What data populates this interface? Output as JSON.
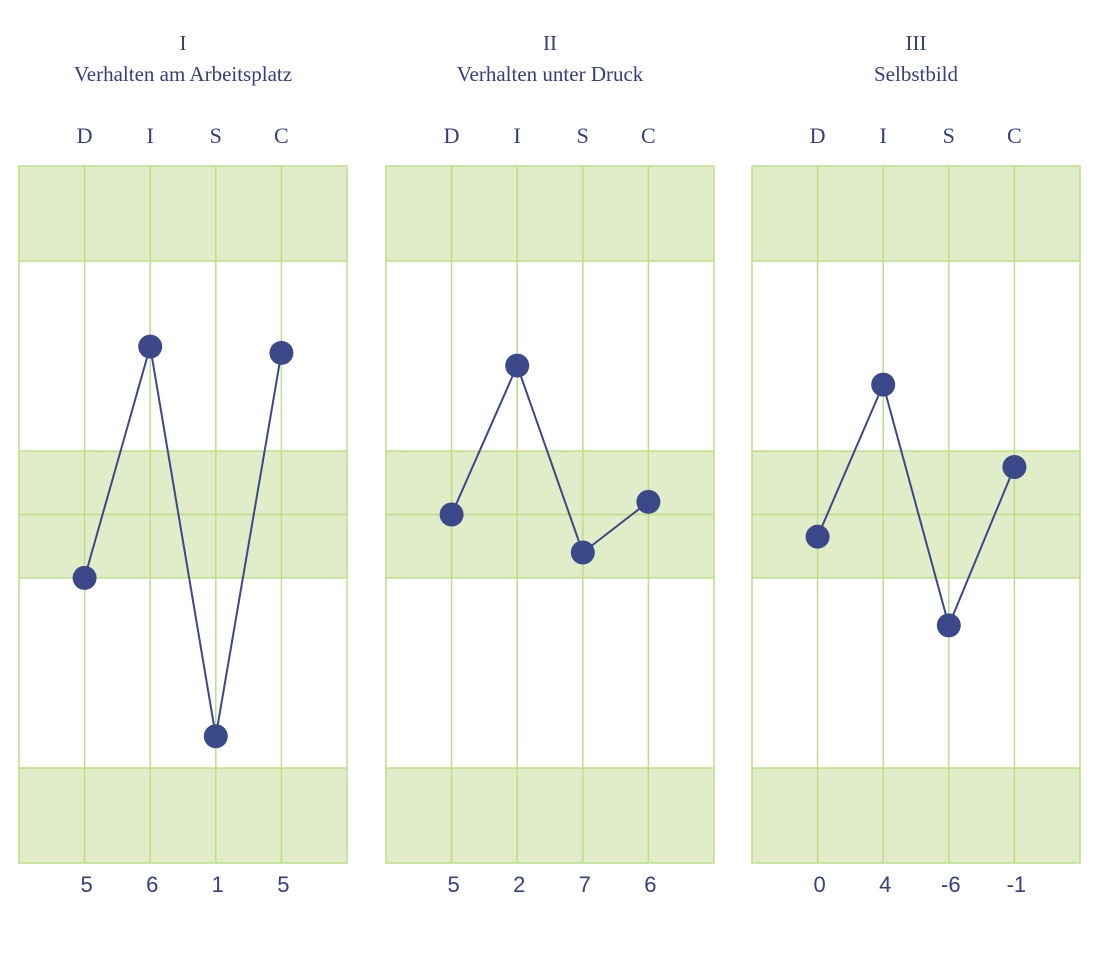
{
  "colors": {
    "band_fill": "#e1edc8",
    "grid_line": "#bcdf85",
    "series": "#3b4889",
    "text": "#34407a"
  },
  "chart_data": [
    {
      "type": "line",
      "roman": "I",
      "title": "Verhalten am Arbeitsplatz",
      "categories": [
        "D",
        "I",
        "S",
        "C"
      ],
      "scores": [
        "5",
        "6",
        "1",
        "5"
      ],
      "values": [
        -0.2,
        0.53,
        -0.7,
        0.51
      ],
      "ylim": [
        -1.1,
        1.1
      ],
      "shaded_bands": [
        [
          0.8,
          1.1
        ],
        [
          -0.2,
          0.2
        ],
        [
          -1.1,
          -0.8
        ]
      ]
    },
    {
      "type": "line",
      "roman": "II",
      "title": "Verhalten unter Druck",
      "categories": [
        "D",
        "I",
        "S",
        "C"
      ],
      "scores": [
        "5",
        "2",
        "7",
        "6"
      ],
      "values": [
        0.0,
        0.47,
        -0.12,
        0.04
      ],
      "ylim": [
        -1.1,
        1.1
      ],
      "shaded_bands": [
        [
          0.8,
          1.1
        ],
        [
          -0.2,
          0.2
        ],
        [
          -1.1,
          -0.8
        ]
      ]
    },
    {
      "type": "line",
      "roman": "III",
      "title": "Selbstbild",
      "categories": [
        "D",
        "I",
        "S",
        "C"
      ],
      "scores": [
        "0",
        "4",
        "-6",
        "-1"
      ],
      "values": [
        -0.07,
        0.41,
        -0.35,
        0.15
      ],
      "ylim": [
        -1.1,
        1.1
      ],
      "shaded_bands": [
        [
          0.8,
          1.1
        ],
        [
          -0.2,
          0.2
        ],
        [
          -1.1,
          -0.8
        ]
      ]
    }
  ]
}
